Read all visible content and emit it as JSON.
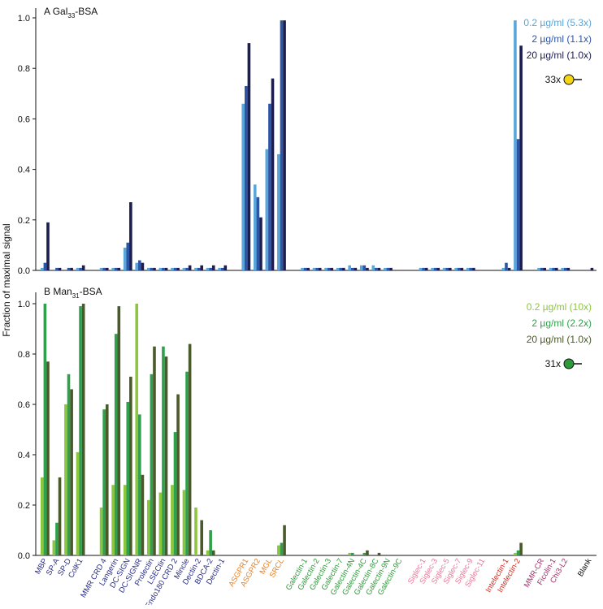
{
  "ylabel": "Fraction of maximal signal",
  "categories": [
    {
      "name": "MBP",
      "color": "#2a2f86"
    },
    {
      "name": "SP-A",
      "color": "#2a2f86"
    },
    {
      "name": "SP-D",
      "color": "#2a2f86"
    },
    {
      "name": "ColK1",
      "color": "#2a2f86"
    },
    {
      "name": "",
      "color": "#2a2f86"
    },
    {
      "name": "MMR CRD 4",
      "color": "#2a2f86"
    },
    {
      "name": "Langerin",
      "color": "#2a2f86"
    },
    {
      "name": "DC-SIGN",
      "color": "#2a2f86"
    },
    {
      "name": "DC-SIGNR",
      "color": "#2a2f86"
    },
    {
      "name": "Prolectin",
      "color": "#2a2f86"
    },
    {
      "name": "LSECtin",
      "color": "#2a2f86"
    },
    {
      "name": "Endo180 CRD 2",
      "color": "#2a2f86"
    },
    {
      "name": "Mincle",
      "color": "#2a2f86"
    },
    {
      "name": "Dectin-2",
      "color": "#2a2f86"
    },
    {
      "name": "BDCA-2",
      "color": "#2a2f86"
    },
    {
      "name": "Dectin-1",
      "color": "#2a2f86"
    },
    {
      "name": "",
      "color": "#2a2f86"
    },
    {
      "name": "ASGPR1",
      "color": "#e8822a"
    },
    {
      "name": "ASGPR2",
      "color": "#e8822a"
    },
    {
      "name": "MGL",
      "color": "#e8822a"
    },
    {
      "name": "SRCL",
      "color": "#e8822a"
    },
    {
      "name": "",
      "color": "#e8822a"
    },
    {
      "name": "Galectin-1",
      "color": "#2f9a3a"
    },
    {
      "name": "Galectin-2",
      "color": "#2f9a3a"
    },
    {
      "name": "Galectin-3",
      "color": "#2f9a3a"
    },
    {
      "name": "Galectin-7",
      "color": "#2f9a3a"
    },
    {
      "name": "Galectin-4N",
      "color": "#2f9a3a"
    },
    {
      "name": "Galectin-4C",
      "color": "#2f9a3a"
    },
    {
      "name": "Galectin-8C",
      "color": "#2f9a3a"
    },
    {
      "name": "Galectin-9N",
      "color": "#2f9a3a"
    },
    {
      "name": "Galectin-9C",
      "color": "#2f9a3a"
    },
    {
      "name": "",
      "color": "#2f9a3a"
    },
    {
      "name": "Siglec-1",
      "color": "#e8799a"
    },
    {
      "name": "Siglec-3",
      "color": "#e8799a"
    },
    {
      "name": "Siglec-5",
      "color": "#e8799a"
    },
    {
      "name": "Siglec-7",
      "color": "#e8799a"
    },
    {
      "name": "Siglec-9",
      "color": "#e8799a"
    },
    {
      "name": "Siglec-11",
      "color": "#e8799a"
    },
    {
      "name": "",
      "color": "#e8799a"
    },
    {
      "name": "Intelectin-1",
      "color": "#d92b1e"
    },
    {
      "name": "Intelectin-2",
      "color": "#d92b1e"
    },
    {
      "name": "",
      "color": "#d92b1e"
    },
    {
      "name": "MMR-CR",
      "color": "#a0336a"
    },
    {
      "name": "Ficolin-1",
      "color": "#a0336a"
    },
    {
      "name": "Chi3-L2",
      "color": "#a0336a"
    },
    {
      "name": "",
      "color": "#a0336a"
    },
    {
      "name": "Blank",
      "color": "#111111"
    }
  ],
  "chart_data": [
    {
      "type": "bar",
      "panel": "A",
      "title_main": "Gal",
      "title_sub": "33",
      "title_tail": "-BSA",
      "ylim": [
        0,
        1.0
      ],
      "yticks": [
        "0.0",
        "0.2",
        "0.4",
        "0.6",
        "0.8",
        "1.0"
      ],
      "probe_label": "33x",
      "probe_color": "#f5d50f",
      "series": [
        {
          "name": "0.2 µg/ml (5.3x)",
          "color": "#5ba6d8",
          "values": [
            0.01,
            0.0,
            0.0,
            0.01,
            0,
            0.01,
            0.01,
            0.09,
            0.03,
            0.01,
            0.01,
            0.01,
            0.01,
            0.01,
            0.01,
            0.01,
            0,
            0.66,
            0.34,
            0.48,
            0.46,
            0,
            0.01,
            0.01,
            0.01,
            0.01,
            0.02,
            0.02,
            0.02,
            0.01,
            0.0,
            0,
            0.01,
            0.01,
            0.01,
            0.01,
            0.01,
            0.0,
            0,
            0.01,
            0.99,
            0,
            0.01,
            0.01,
            0.01,
            0,
            0.0
          ]
        },
        {
          "name": "2 µg/ml (1.1x)",
          "color": "#2d55a6",
          "values": [
            0.03,
            0.01,
            0.01,
            0.01,
            0,
            0.01,
            0.01,
            0.11,
            0.04,
            0.01,
            0.01,
            0.01,
            0.01,
            0.01,
            0.01,
            0.01,
            0,
            0.73,
            0.29,
            0.66,
            0.99,
            0,
            0.01,
            0.01,
            0.01,
            0.01,
            0.01,
            0.02,
            0.01,
            0.01,
            0.0,
            0,
            0.01,
            0.01,
            0.01,
            0.01,
            0.01,
            0.0,
            0,
            0.03,
            0.52,
            0,
            0.01,
            0.01,
            0.01,
            0,
            0.0
          ]
        },
        {
          "name": "20 µg/ml (1.0x)",
          "color": "#1b1e4e",
          "values": [
            0.19,
            0.01,
            0.01,
            0.02,
            0,
            0.01,
            0.01,
            0.27,
            0.03,
            0.01,
            0.01,
            0.01,
            0.02,
            0.02,
            0.02,
            0.02,
            0,
            0.9,
            0.21,
            0.76,
            0.99,
            0,
            0.01,
            0.01,
            0.01,
            0.01,
            0.01,
            0.01,
            0.01,
            0.01,
            0.0,
            0,
            0.01,
            0.01,
            0.01,
            0.01,
            0.01,
            0.0,
            0,
            0.01,
            0.89,
            0,
            0.01,
            0.01,
            0.01,
            0,
            0.01
          ]
        }
      ]
    },
    {
      "type": "bar",
      "panel": "B",
      "title_main": "Man",
      "title_sub": "31",
      "title_tail": "-BSA",
      "ylim": [
        0,
        1.0
      ],
      "yticks": [
        "0.0",
        "0.2",
        "0.4",
        "0.6",
        "0.8",
        "1.0"
      ],
      "probe_label": "31x",
      "probe_color": "#2e9b3a",
      "series": [
        {
          "name": "0.2 µg/ml (10x)",
          "color": "#8cc63f",
          "values": [
            0.31,
            0.06,
            0.6,
            0.41,
            0,
            0.19,
            0.28,
            0.28,
            1.0,
            0.22,
            0.25,
            0.28,
            0.26,
            0.19,
            0.02,
            0.0,
            0,
            0.0,
            0.0,
            0.0,
            0.04,
            0,
            0.0,
            0.0,
            0.0,
            0.0,
            0.01,
            0.0,
            0.0,
            0.0,
            0.0,
            0,
            0.0,
            0.0,
            0.0,
            0.0,
            0.0,
            0.0,
            0,
            0.0,
            0.01,
            0,
            0.0,
            0.0,
            0.0,
            0,
            0.0
          ]
        },
        {
          "name": "2 µg/ml (2.2x)",
          "color": "#2fa04b",
          "values": [
            1.0,
            0.13,
            0.72,
            0.99,
            0,
            0.58,
            0.88,
            0.61,
            0.56,
            0.72,
            0.83,
            0.49,
            0.73,
            0.0,
            0.1,
            0.0,
            0,
            0.0,
            0.0,
            0.0,
            0.05,
            0,
            0.0,
            0.0,
            0.0,
            0.0,
            0.01,
            0.01,
            0.0,
            0.0,
            0.0,
            0,
            0.0,
            0.0,
            0.0,
            0.0,
            0.0,
            0.0,
            0,
            0.0,
            0.02,
            0,
            0.0,
            0.0,
            0.0,
            0,
            0.0
          ]
        },
        {
          "name": "20 µg/ml (1.0x)",
          "color": "#4a5a2a",
          "values": [
            0.77,
            0.31,
            0.66,
            1.0,
            0,
            0.6,
            0.99,
            0.71,
            0.32,
            0.83,
            0.79,
            0.64,
            0.84,
            0.14,
            0.02,
            0.0,
            0,
            0.0,
            0.0,
            0.0,
            0.12,
            0,
            0.0,
            0.0,
            0.0,
            0.0,
            0.0,
            0.02,
            0.01,
            0.0,
            0.0,
            0,
            0.0,
            0.0,
            0.0,
            0.0,
            0.0,
            0.0,
            0,
            0.0,
            0.05,
            0,
            0.0,
            0.0,
            0.0,
            0,
            0.0
          ]
        }
      ]
    }
  ]
}
